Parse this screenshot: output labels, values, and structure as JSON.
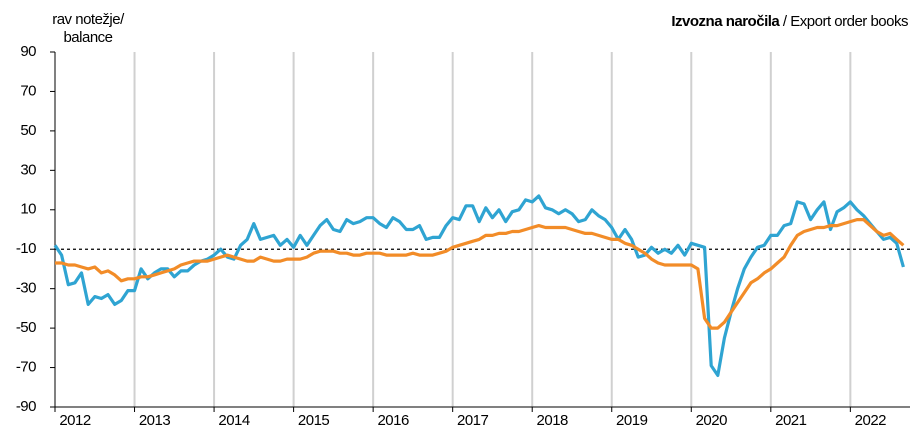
{
  "chart_data": {
    "type": "line",
    "title_bold": "Izvozna naročila",
    "title": "/ Export order books",
    "ylabel": [
      "rav notežje/",
      "balance"
    ],
    "x": [
      2012,
      2012.083,
      2012.167,
      2012.25,
      2012.333,
      2012.417,
      2012.5,
      2012.583,
      2012.667,
      2012.75,
      2012.833,
      2012.917,
      2013,
      2013.083,
      2013.167,
      2013.25,
      2013.333,
      2013.417,
      2013.5,
      2013.583,
      2013.667,
      2013.75,
      2013.833,
      2013.917,
      2014,
      2014.083,
      2014.167,
      2014.25,
      2014.333,
      2014.417,
      2014.5,
      2014.583,
      2014.667,
      2014.75,
      2014.833,
      2014.917,
      2015,
      2015.083,
      2015.167,
      2015.25,
      2015.333,
      2015.417,
      2015.5,
      2015.583,
      2015.667,
      2015.75,
      2015.833,
      2015.917,
      2016,
      2016.083,
      2016.167,
      2016.25,
      2016.333,
      2016.417,
      2016.5,
      2016.583,
      2016.667,
      2016.75,
      2016.833,
      2016.917,
      2017,
      2017.083,
      2017.167,
      2017.25,
      2017.333,
      2017.417,
      2017.5,
      2017.583,
      2017.667,
      2017.75,
      2017.833,
      2017.917,
      2018,
      2018.083,
      2018.167,
      2018.25,
      2018.333,
      2018.417,
      2018.5,
      2018.583,
      2018.667,
      2018.75,
      2018.833,
      2018.917,
      2019,
      2019.083,
      2019.167,
      2019.25,
      2019.333,
      2019.417,
      2019.5,
      2019.583,
      2019.667,
      2019.75,
      2019.833,
      2019.917,
      2020,
      2020.083,
      2020.167,
      2020.25,
      2020.333,
      2020.417,
      2020.5,
      2020.583,
      2020.667,
      2020.75,
      2020.833,
      2020.917,
      2021,
      2021.083,
      2021.167,
      2021.25,
      2021.333,
      2021.417,
      2021.5,
      2021.583,
      2021.667,
      2021.75,
      2021.833,
      2021.917,
      2022,
      2022.083,
      2022.167,
      2022.25,
      2022.333,
      2022.417,
      2022.5,
      2022.583,
      2022.667
    ],
    "series": [
      {
        "color": "#2fa4d2",
        "values": [
          -8,
          -13,
          -28,
          -27,
          -22,
          -38,
          -34,
          -35,
          -33,
          -38,
          -36,
          -31,
          -31,
          -20,
          -25,
          -22,
          -20,
          -20,
          -24,
          -21,
          -21,
          -18,
          -16,
          -15,
          -13,
          -10,
          -14,
          -15,
          -8,
          -5,
          3,
          -5,
          -4,
          -3,
          -8,
          -5,
          -9,
          -3,
          -8,
          -3,
          2,
          5,
          0,
          -1,
          5,
          3,
          4,
          6,
          6,
          3,
          1,
          6,
          4,
          0,
          0,
          2,
          -5,
          -4,
          -4,
          2,
          6,
          5,
          12,
          12,
          4,
          11,
          6,
          10,
          4,
          9,
          10,
          15,
          14,
          17,
          11,
          10,
          8,
          10,
          8,
          4,
          5,
          10,
          7,
          5,
          1,
          -5,
          0,
          -5,
          -14,
          -13,
          -9,
          -12,
          -10,
          -12,
          -8,
          -13,
          -7,
          -8,
          -9,
          -69,
          -74,
          -55,
          -42,
          -30,
          -20,
          -14,
          -9,
          -8,
          -3,
          -3,
          2,
          3,
          14,
          13,
          5,
          10,
          14,
          0,
          9,
          11,
          14,
          10,
          7,
          3,
          -1,
          -5,
          -4,
          -7,
          -19
        ]
      },
      {
        "color": "#f28c28",
        "values": [
          -17,
          -17,
          -18,
          -18,
          -19,
          -20,
          -19,
          -22,
          -21,
          -23,
          -26,
          -25,
          -25,
          -24,
          -24,
          -23,
          -22,
          -21,
          -20,
          -18,
          -17,
          -16,
          -16,
          -16,
          -15,
          -14,
          -13,
          -14,
          -15,
          -16,
          -16,
          -14,
          -15,
          -16,
          -16,
          -15,
          -15,
          -15,
          -14,
          -12,
          -11,
          -11,
          -11,
          -12,
          -12,
          -13,
          -13,
          -12,
          -12,
          -12,
          -13,
          -13,
          -13,
          -13,
          -12,
          -13,
          -13,
          -13,
          -12,
          -11,
          -9,
          -8,
          -7,
          -6,
          -5,
          -3,
          -3,
          -2,
          -2,
          -1,
          -1,
          0,
          1,
          2,
          1,
          1,
          1,
          1,
          0,
          -1,
          -2,
          -2,
          -3,
          -4,
          -5,
          -5,
          -7,
          -8,
          -10,
          -12,
          -15,
          -17,
          -18,
          -18,
          -18,
          -18,
          -18,
          -20,
          -45,
          -50,
          -50,
          -47,
          -42,
          -37,
          -32,
          -27,
          -25,
          -22,
          -20,
          -17,
          -14,
          -8,
          -3,
          -1,
          0,
          1,
          1,
          2,
          2,
          3,
          4,
          5,
          5,
          2,
          -1,
          -3,
          -2,
          -5,
          -8
        ]
      }
    ],
    "reference_line": -10,
    "xlim": [
      2012,
      2022.75
    ],
    "xticks": [
      2012,
      2013,
      2014,
      2015,
      2016,
      2017,
      2018,
      2019,
      2020,
      2021,
      2022
    ],
    "ylim": [
      -90,
      90
    ],
    "yticks": [
      -90,
      -70,
      -50,
      -30,
      -10,
      10,
      30,
      50,
      70,
      90
    ],
    "grid": "x"
  }
}
